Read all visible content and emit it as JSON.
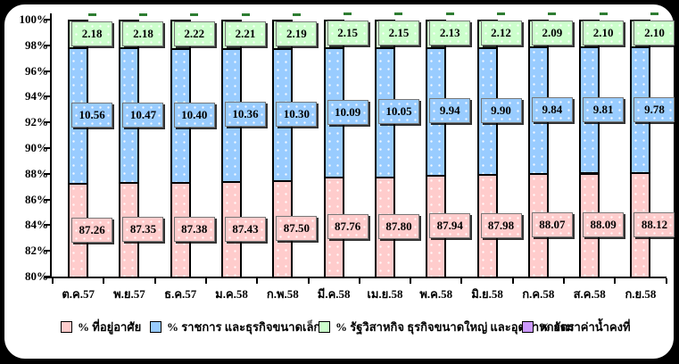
{
  "chart_data": {
    "type": "bar",
    "variant": "stacked-column-percent",
    "title": "",
    "xlabel": "",
    "ylabel": "",
    "grid": false,
    "legend_position": "bottom",
    "y_axis": {
      "min": 80,
      "max": 100,
      "step": 2,
      "tick_labels": [
        "100%",
        "98%",
        "96%",
        "94%",
        "92%",
        "90%",
        "88%",
        "86%",
        "84%",
        "82%",
        "80%"
      ]
    },
    "categories": [
      "ต.ค.57",
      "พ.ย.57",
      "ธ.ค.57",
      "ม.ค.58",
      "ก.พ.58",
      "มี.ค.58",
      "เม.ย.58",
      "พ.ค.58",
      "มิ.ย.58",
      "ก.ค.58",
      "ส.ค.58",
      "ก.ย.58"
    ],
    "series": [
      {
        "name": "% ที่อยู่อาศัย",
        "color": "#ffcccc",
        "values": [
          87.26,
          87.35,
          87.38,
          87.43,
          87.5,
          87.76,
          87.8,
          87.94,
          87.98,
          88.07,
          88.09,
          88.12
        ]
      },
      {
        "name": "% ราชการ และธุรกิจขนาดเล็ก",
        "color": "#99ccff",
        "values": [
          10.56,
          10.47,
          10.4,
          10.36,
          10.3,
          10.09,
          10.05,
          9.94,
          9.9,
          9.84,
          9.81,
          9.78
        ]
      },
      {
        "name": "% รัฐวิสาหกิจ ธุรกิจขนาดใหญ่ และอุตสาหกรรม",
        "color": "#ccffcc",
        "values": [
          2.18,
          2.18,
          2.22,
          2.21,
          2.19,
          2.15,
          2.15,
          2.13,
          2.12,
          2.09,
          2.1,
          2.1
        ]
      },
      {
        "name": "% อัตราค่าน้ำคงที่",
        "color": "#cc99ff",
        "values": []
      }
    ]
  },
  "colors": {
    "residential": "#ffcccc",
    "government_small_business": "#99ccff",
    "state_enterprise_industry": "#ccffcc",
    "fixed_water_rate": "#cc99ff",
    "frame_border": "#000000",
    "background": "#ffffff"
  }
}
